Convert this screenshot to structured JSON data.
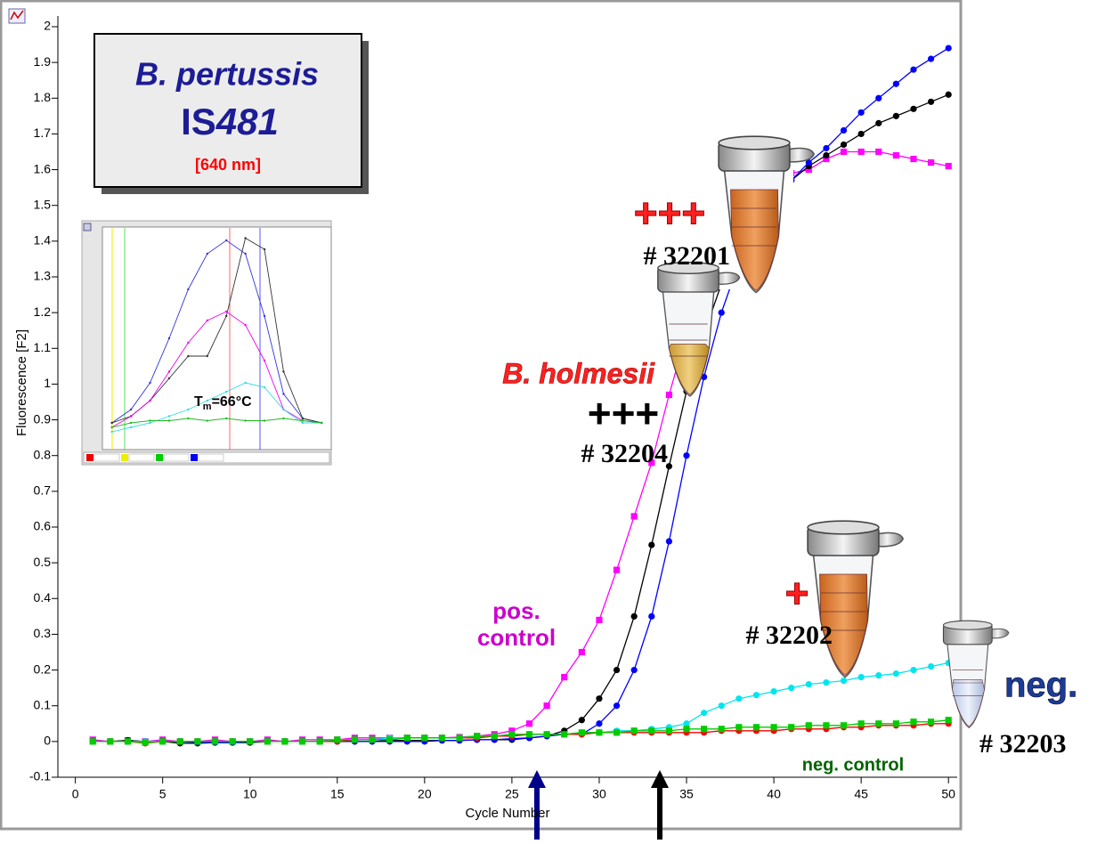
{
  "chart_data": [
    {
      "type": "line",
      "y_label": "Fluorescence [F2]",
      "x_label": "Cycle Number",
      "x": [
        1,
        2,
        3,
        4,
        5,
        6,
        7,
        8,
        9,
        10,
        11,
        12,
        13,
        14,
        15,
        16,
        17,
        18,
        19,
        20,
        21,
        22,
        23,
        24,
        25,
        26,
        27,
        28,
        29,
        30,
        31,
        32,
        33,
        34,
        35,
        36,
        37,
        38,
        39,
        40,
        41,
        42,
        43,
        44,
        45,
        46,
        47,
        48,
        49,
        50
      ],
      "xlim": [
        -1,
        50.5
      ],
      "xticks": [
        0,
        5,
        10,
        15,
        20,
        25,
        30,
        35,
        40,
        45,
        50
      ],
      "ylim": [
        -0.1,
        2
      ],
      "yticks": [
        -0.1,
        0,
        0.1,
        0.2,
        0.3,
        0.4,
        0.5,
        0.6,
        0.7,
        0.8,
        0.9,
        1,
        1.1,
        1.2,
        1.3,
        1.4,
        1.5,
        1.6,
        1.7,
        1.8,
        1.9,
        2
      ],
      "series": [
        {
          "color": "#ff00ff",
          "marker": "square",
          "values": [
            0.005,
            0,
            0.003,
            0,
            0.005,
            0,
            0,
            0.005,
            0,
            0,
            0.005,
            0,
            0.005,
            0.005,
            0.005,
            0.01,
            0.01,
            0.01,
            0.01,
            0.01,
            0.01,
            0.012,
            0.015,
            0.02,
            0.03,
            0.05,
            0.1,
            0.18,
            0.25,
            0.34,
            0.48,
            0.63,
            0.78,
            0.97,
            1.14,
            1.26,
            1.36,
            1.44,
            1.5,
            1.55,
            1.59,
            1.6,
            1.63,
            1.65,
            1.65,
            1.65,
            1.64,
            1.63,
            1.62,
            1.61
          ]
        },
        {
          "color": "#000000",
          "marker": "circle",
          "values": [
            0,
            0,
            0.003,
            0,
            0,
            -0.005,
            -0.005,
            -0.003,
            -0.003,
            -0.003,
            0,
            0,
            0,
            0,
            0,
            0,
            0,
            0.003,
            0.003,
            0.003,
            0.003,
            0.003,
            0.005,
            0.005,
            0.005,
            0.01,
            0.015,
            0.03,
            0.06,
            0.12,
            0.2,
            0.35,
            0.55,
            0.77,
            0.98,
            1.14,
            1.28,
            1.38,
            1.46,
            1.52,
            1.57,
            1.61,
            1.64,
            1.67,
            1.7,
            1.73,
            1.75,
            1.77,
            1.79,
            1.81
          ]
        },
        {
          "color": "#0000ff",
          "marker": "circle",
          "values": [
            0,
            0,
            0,
            0,
            0,
            0,
            -0.003,
            -0.003,
            -0.003,
            0,
            0,
            0,
            0,
            0,
            0,
            0,
            0,
            0,
            0,
            0,
            0.003,
            0.003,
            0.005,
            0.005,
            0.008,
            0.01,
            0.015,
            0.02,
            0.02,
            0.05,
            0.1,
            0.2,
            0.35,
            0.56,
            0.8,
            1.02,
            1.2,
            1.34,
            1.45,
            1.52,
            1.57,
            1.62,
            1.66,
            1.71,
            1.76,
            1.8,
            1.84,
            1.88,
            1.91,
            1.94
          ]
        },
        {
          "color": "#00e5ee",
          "marker": "circle",
          "values": [
            0,
            0,
            0,
            0,
            0,
            0,
            0,
            0,
            0,
            0,
            0,
            0,
            0,
            0,
            0.005,
            0.005,
            0.005,
            0.01,
            0.01,
            0.01,
            0.01,
            0.01,
            0.015,
            0.015,
            0.015,
            0.02,
            0.02,
            0.02,
            0.025,
            0.025,
            0.03,
            0.03,
            0.035,
            0.04,
            0.05,
            0.08,
            0.1,
            0.12,
            0.13,
            0.14,
            0.15,
            0.16,
            0.165,
            0.17,
            0.18,
            0.185,
            0.19,
            0.2,
            0.21,
            0.22
          ]
        },
        {
          "color": "#ff0000",
          "marker": "circle",
          "values": [
            0,
            0,
            0,
            -0.005,
            0,
            0,
            0,
            0,
            0,
            0,
            0,
            0,
            0,
            0,
            0,
            0.005,
            0.005,
            0.005,
            0.01,
            0.01,
            0.01,
            0.01,
            0.01,
            0.015,
            0.015,
            0.02,
            0.02,
            0.02,
            0.02,
            0.025,
            0.025,
            0.025,
            0.025,
            0.025,
            0.025,
            0.025,
            0.03,
            0.03,
            0.03,
            0.03,
            0.035,
            0.035,
            0.035,
            0.04,
            0.04,
            0.045,
            0.045,
            0.045,
            0.05,
            0.05
          ]
        },
        {
          "color": "#00cc00",
          "marker": "square",
          "values": [
            0,
            0,
            0,
            -0.003,
            0,
            0,
            0,
            0,
            0,
            0,
            0,
            0,
            0,
            0,
            0.005,
            0.005,
            0.005,
            0.005,
            0.01,
            0.01,
            0.01,
            0.01,
            0.015,
            0.015,
            0.02,
            0.02,
            0.02,
            0.02,
            0.025,
            0.025,
            0.025,
            0.03,
            0.03,
            0.03,
            0.035,
            0.035,
            0.035,
            0.04,
            0.04,
            0.04,
            0.04,
            0.045,
            0.045,
            0.045,
            0.05,
            0.05,
            0.05,
            0.055,
            0.055,
            0.06
          ]
        }
      ],
      "annotations": [
        {
          "text": "B. pertussis"
        },
        {
          "text_plain": "IS",
          "text_italic": "481"
        },
        {
          "text": "[640 nm]"
        },
        {
          "text": "+++"
        },
        {
          "text": "# 32201"
        },
        {
          "text": "B. holmesii"
        },
        {
          "text": "+++"
        },
        {
          "text": "# 32204"
        },
        {
          "text": "+"
        },
        {
          "text": "# 32202"
        },
        {
          "text": "neg."
        },
        {
          "text": "# 32203"
        },
        {
          "text": "pos."
        },
        {
          "text": "control"
        },
        {
          "text": "neg. control"
        }
      ]
    },
    {
      "type": "line",
      "x": [
        56,
        58,
        60,
        62,
        64,
        66,
        68,
        70,
        72,
        74,
        76,
        78
      ],
      "xlim": [
        55,
        79
      ],
      "ylim": [
        0,
        0.1
      ],
      "annotation": {
        "main": "T",
        "sub": "m",
        "rest": "=66°C"
      },
      "series": [
        {
          "color": "#3333dd",
          "values": [
            0.012,
            0.018,
            0.03,
            0.05,
            0.072,
            0.088,
            0.094,
            0.088,
            0.06,
            0.025,
            0.014,
            0.012
          ]
        },
        {
          "color": "#333333",
          "values": [
            0.012,
            0.015,
            0.022,
            0.032,
            0.042,
            0.042,
            0.06,
            0.095,
            0.09,
            0.035,
            0.014,
            0.012
          ]
        },
        {
          "color": "#ee00ee",
          "values": [
            0.01,
            0.015,
            0.022,
            0.035,
            0.048,
            0.058,
            0.062,
            0.056,
            0.04,
            0.018,
            0.013,
            0.012
          ]
        },
        {
          "color": "#33dddd",
          "values": [
            0.008,
            0.01,
            0.012,
            0.015,
            0.018,
            0.022,
            0.026,
            0.03,
            0.028,
            0.018,
            0.012,
            0.012
          ]
        },
        {
          "color": "#22bb22",
          "values": [
            0.01,
            0.012,
            0.013,
            0.013,
            0.014,
            0.013,
            0.014,
            0.013,
            0.013,
            0.014,
            0.013,
            0.012
          ]
        }
      ]
    }
  ]
}
